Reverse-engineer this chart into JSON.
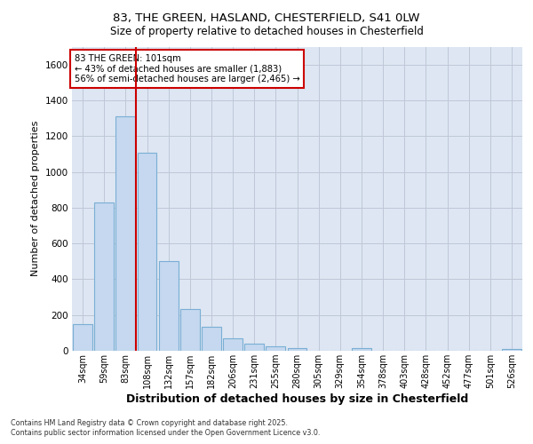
{
  "title_line1": "83, THE GREEN, HASLAND, CHESTERFIELD, S41 0LW",
  "title_line2": "Size of property relative to detached houses in Chesterfield",
  "xlabel": "Distribution of detached houses by size in Chesterfield",
  "ylabel": "Number of detached properties",
  "footnote1": "Contains HM Land Registry data © Crown copyright and database right 2025.",
  "footnote2": "Contains public sector information licensed under the Open Government Licence v3.0.",
  "annotation_line1": "83 THE GREEN: 101sqm",
  "annotation_line2": "← 43% of detached houses are smaller (1,883)",
  "annotation_line3": "56% of semi-detached houses are larger (2,465) →",
  "bar_color": "#c5d8ef",
  "bar_edge_color": "#7aafd4",
  "vline_color": "#cc0000",
  "grid_color": "#c0c8d8",
  "bg_color": "#dde6f2",
  "ann_edge_color": "#cc0000",
  "categories": [
    "34sqm",
    "59sqm",
    "83sqm",
    "108sqm",
    "132sqm",
    "157sqm",
    "182sqm",
    "206sqm",
    "231sqm",
    "255sqm",
    "280sqm",
    "305sqm",
    "329sqm",
    "354sqm",
    "378sqm",
    "403sqm",
    "428sqm",
    "452sqm",
    "477sqm",
    "501sqm",
    "526sqm"
  ],
  "values": [
    150,
    830,
    1310,
    1105,
    500,
    235,
    135,
    70,
    38,
    27,
    15,
    0,
    0,
    14,
    0,
    0,
    0,
    0,
    0,
    0,
    10
  ],
  "ylim": [
    0,
    1700
  ],
  "yticks": [
    0,
    200,
    400,
    600,
    800,
    1000,
    1200,
    1400,
    1600
  ],
  "vline_index": 3
}
